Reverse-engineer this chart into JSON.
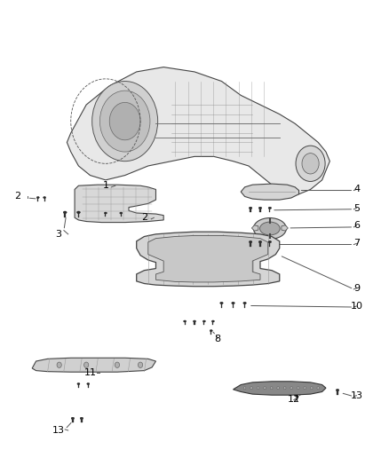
{
  "title": "",
  "background_color": "#ffffff",
  "fig_width": 4.38,
  "fig_height": 5.33,
  "dpi": 100,
  "line_color": "#555555",
  "text_color": "#000000",
  "label_fontsize": 8
}
